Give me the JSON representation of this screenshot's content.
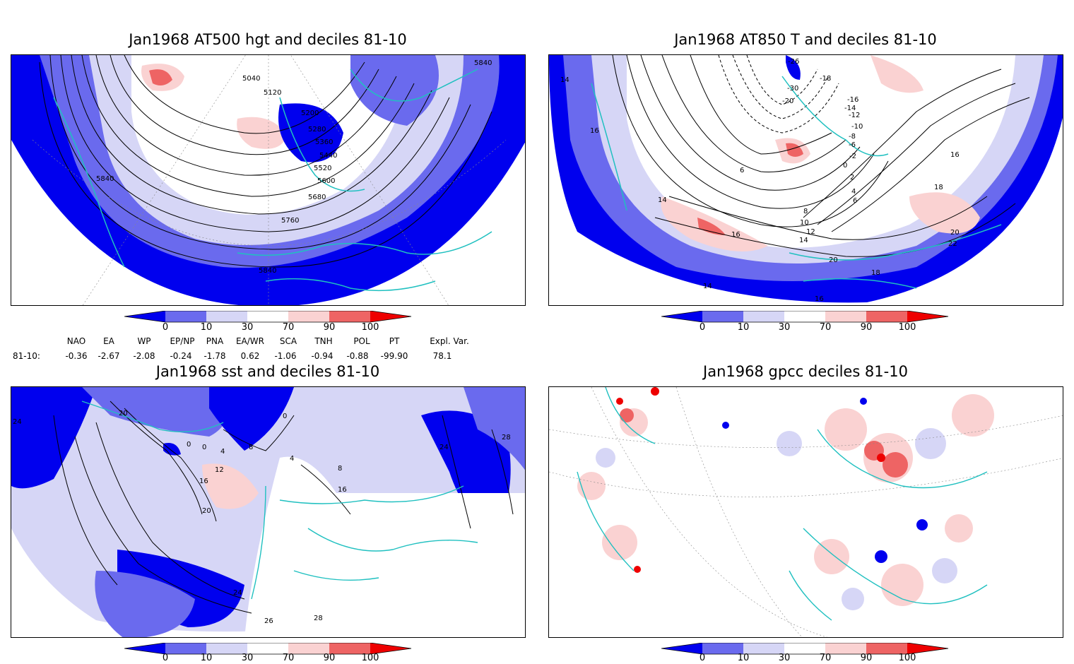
{
  "panels": [
    {
      "title": "Jan1968 AT500 hgt and deciles 81-10",
      "contour_labels": [
        "5040",
        "5120",
        "5200",
        "5280",
        "5360",
        "5440",
        "5520",
        "5600",
        "5680",
        "5760",
        "5840",
        "5840",
        "5840"
      ]
    },
    {
      "title": "Jan1968 AT850 T and deciles 81-10",
      "contour_labels": [
        "-26",
        "-18",
        "-30",
        "-20",
        "-16",
        "-14",
        "-12",
        "-10",
        "-8",
        "-6",
        "-2",
        "0",
        "2",
        "4",
        "6",
        "8",
        "10",
        "12",
        "14",
        "16",
        "18",
        "20",
        "22",
        "20",
        "18",
        "16",
        "14",
        "14",
        "14",
        "16",
        "16",
        "6"
      ]
    },
    {
      "title": "Jan1968 sst and deciles 81-10",
      "contour_labels": [
        "24",
        "20",
        "0",
        "0",
        "4",
        "8",
        "12",
        "16",
        "20",
        "24",
        "28",
        "26",
        "28",
        "24",
        "16",
        "8",
        "4",
        "0"
      ]
    },
    {
      "title": "Jan1968 gpcc deciles 81-10",
      "contour_labels": []
    }
  ],
  "colorbar": {
    "tick_labels": [
      "0",
      "10",
      "30",
      "70",
      "90",
      "100"
    ],
    "colors": [
      "#0000ee",
      "#6a6aee",
      "#d6d6f6",
      "#ffffff",
      "#fad2d2",
      "#ee6464",
      "#ee0000"
    ]
  },
  "indices": {
    "headers": [
      "NAO",
      "EA",
      "WP",
      "EP/NP",
      "PNA",
      "EA/WR",
      "SCA",
      "TNH",
      "POL",
      "PT",
      "Expl. Var."
    ],
    "row_label": "81-10:",
    "values": [
      "-0.36",
      "-2.67",
      "-2.08",
      "-0.24",
      "-1.78",
      "0.62",
      "-1.06",
      "-0.94",
      "-0.88",
      "-99.90",
      "78.1"
    ]
  }
}
